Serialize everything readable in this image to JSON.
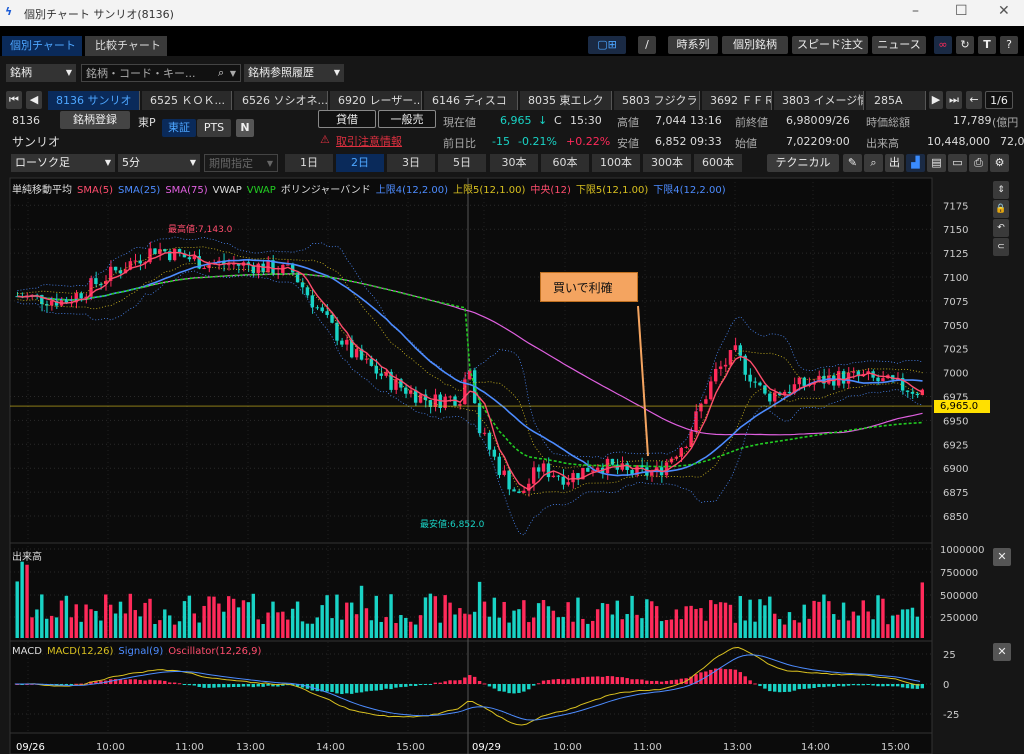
{
  "window": {
    "title": "個別チャート サンリオ(8136)",
    "minimize": "–",
    "maximize": "☐",
    "close": "✕"
  },
  "tabs": [
    "個別チャート",
    "比較チャート"
  ],
  "toolbar": {
    "buttons": [
      "時系列",
      "個別銘柄",
      "スピード注文",
      "ニュース"
    ]
  },
  "search": {
    "type": "銘柄",
    "placeholder": "銘柄・コード・キー...",
    "history": "銘柄参照履歴"
  },
  "stock_tabs": [
    "8136 サンリオ",
    "6525 ＫＯＫ...",
    "6526 ソシオネ...",
    "6920 レーザー...",
    "6146 ディスコ",
    "8035 東エレク",
    "5803 フジクラ",
    "3692 ＦＦＲＩ",
    "3803 イメージ情",
    "285A"
  ],
  "page": "1/6",
  "stock": {
    "code": "8136",
    "name": "サンリオ",
    "register": "銘柄登録",
    "market": "東P",
    "exch": [
      "東証",
      "PTS"
    ],
    "lend": "貸借",
    "sell": "一般売",
    "warn": "取引注意情報",
    "cur_label": "現在値",
    "cur": "6,965",
    "cur_arrow": "↓",
    "cur_flag": "C",
    "cur_time": "15:30",
    "chg_label": "前日比",
    "chg": "-15",
    "chg_pct": "-0.21%",
    "chg2": "+0.22%",
    "high_label": "高値",
    "high": "7,044",
    "high_time": "13:16",
    "low_label": "安値",
    "low": "6,852",
    "low_time": "09:33",
    "prev_label": "前終値",
    "prev": "6,980",
    "prev_date": "09/26",
    "open_label": "始値",
    "open": "7,022",
    "open_time": "09:00",
    "cap_label": "時価総額",
    "cap": "17,789",
    "cap_unit": "(億円",
    "vol_label": "出来高",
    "vol": "10,448,000",
    "vol2": "72,0"
  },
  "controls": {
    "chart_type": "ローソク足",
    "interval": "5分",
    "range": "期間指定",
    "periods": [
      "1日",
      "2日",
      "3日",
      "5日",
      "30本",
      "60本",
      "100本",
      "300本",
      "600本"
    ],
    "technical": "テクニカル"
  },
  "legend": [
    {
      "t": "単純移動平均",
      "c": "#dddddd"
    },
    {
      "t": "SMA(5)",
      "c": "#ff4d6d"
    },
    {
      "t": "SMA(25)",
      "c": "#4d8cff"
    },
    {
      "t": "SMA(75)",
      "c": "#e060e0"
    },
    {
      "t": "VWAP",
      "c": "#dddddd"
    },
    {
      "t": "VWAP",
      "c": "#22cc22"
    },
    {
      "t": "ボリンジャーバンド",
      "c": "#dddddd"
    },
    {
      "t": "上限4(12,2.00)",
      "c": "#4d8cff"
    },
    {
      "t": "上限5(12,1.00)",
      "c": "#d8c020"
    },
    {
      "t": "中央(12)",
      "c": "#ff4d6d"
    },
    {
      "t": "下限5(12,1.00)",
      "c": "#d8c020"
    },
    {
      "t": "下限4(12,2.00)",
      "c": "#4d8cff"
    }
  ],
  "annotations": {
    "high": "最高値:7,143.0",
    "low": "最安値:6,852.0",
    "note": "買いで利確",
    "price_tag": "6,965.0"
  },
  "price_axis": [
    7175,
    7150,
    7125,
    7100,
    7075,
    7050,
    7025,
    7000,
    6975,
    6950,
    6925,
    6900,
    6875,
    6850
  ],
  "volume": {
    "title": "出来高",
    "axis": [
      "1000000",
      "750000",
      "500000",
      "250000"
    ]
  },
  "macd": {
    "legend": [
      {
        "t": "MACD",
        "c": "#dddddd"
      },
      {
        "t": "MACD(12,26)",
        "c": "#d8c020"
      },
      {
        "t": "Signal(9)",
        "c": "#4d8cff"
      },
      {
        "t": "Oscillator(12,26,9)",
        "c": "#ff4d6d"
      }
    ],
    "axis": [
      "25",
      "0",
      "-25"
    ]
  },
  "time_axis": [
    "09/26",
    "10:00",
    "11:00",
    "13:00",
    "14:00",
    "15:00",
    "09/29",
    "10:00",
    "11:00",
    "13:00",
    "14:00",
    "15:00"
  ],
  "chart_data": {
    "type": "candlestick",
    "price_path": [
      [
        0,
        7080
      ],
      [
        10,
        7075
      ],
      [
        18,
        7100
      ],
      [
        28,
        7130
      ],
      [
        38,
        7115
      ],
      [
        48,
        7112
      ],
      [
        56,
        7105
      ],
      [
        62,
        7060
      ],
      [
        68,
        7020
      ],
      [
        76,
        6990
      ],
      [
        84,
        6970
      ],
      [
        90,
        6975
      ],
      [
        92,
        7010
      ],
      [
        94,
        6940
      ],
      [
        98,
        6900
      ],
      [
        102,
        6870
      ],
      [
        106,
        6900
      ],
      [
        112,
        6890
      ],
      [
        118,
        6905
      ],
      [
        124,
        6895
      ],
      [
        130,
        6895
      ],
      [
        136,
        6930
      ],
      [
        142,
        7000
      ],
      [
        146,
        7020
      ],
      [
        152,
        6975
      ],
      [
        158,
        6985
      ],
      [
        166,
        6995
      ],
      [
        172,
        6995
      ],
      [
        180,
        6985
      ],
      [
        184,
        6980
      ]
    ],
    "ylim": [
      6835,
      7190
    ],
    "colors": {
      "up": "#ff2a5a",
      "down": "#19d3c5"
    }
  }
}
